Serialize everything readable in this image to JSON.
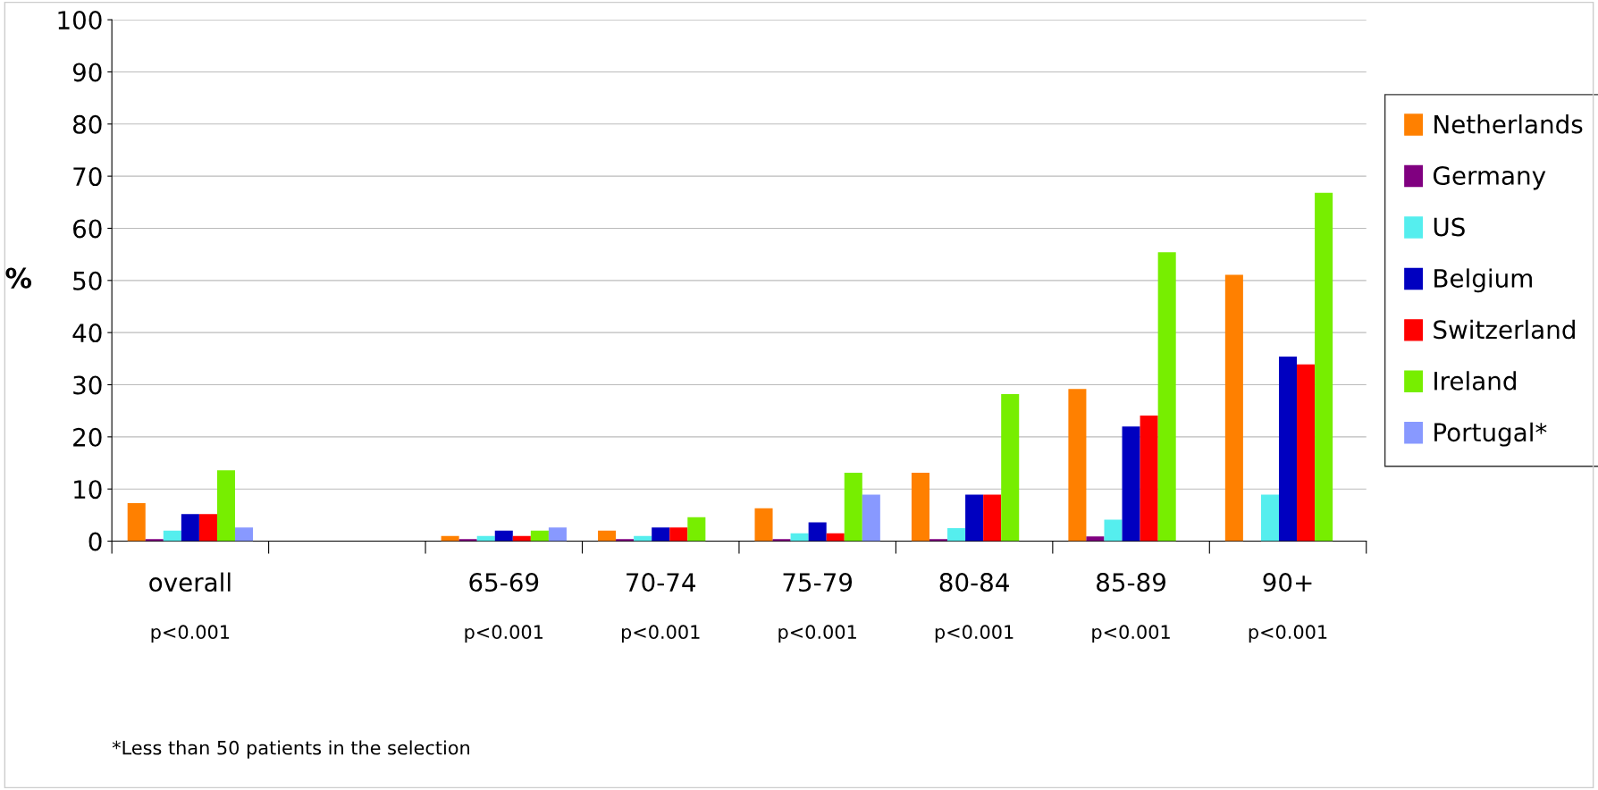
{
  "chart_data": {
    "type": "bar",
    "ylabel": "%",
    "categories": [
      "overall",
      null,
      "65-69",
      "70-74",
      "75-79",
      "80-84",
      "85-89",
      "90+"
    ],
    "series": [
      {
        "name": "Netherlands",
        "color": "#ff8000",
        "values": [
          7.3,
          null,
          1.0,
          2.0,
          6.3,
          13.1,
          29.2,
          51.1
        ]
      },
      {
        "name": "Germany",
        "color": "#800080",
        "values": [
          0.4,
          null,
          0.4,
          0.4,
          0.4,
          0.4,
          0.9,
          null
        ]
      },
      {
        "name": "US",
        "color": "#55eeee",
        "values": [
          2.0,
          null,
          1.0,
          1.0,
          1.5,
          2.5,
          4.1,
          8.9
        ]
      },
      {
        "name": "Belgium",
        "color": "#0000c0",
        "values": [
          5.2,
          null,
          2.0,
          2.6,
          3.6,
          8.9,
          22.0,
          35.4
        ]
      },
      {
        "name": "Switzerland",
        "color": "#ff0000",
        "values": [
          5.2,
          null,
          1.0,
          2.6,
          1.5,
          8.9,
          24.1,
          33.9
        ]
      },
      {
        "name": "Ireland",
        "color": "#77ee00",
        "values": [
          13.6,
          null,
          2.0,
          4.6,
          13.1,
          28.2,
          55.4,
          66.8
        ]
      },
      {
        "name": "Portugal*",
        "color": "#8899ff",
        "values": [
          2.6,
          null,
          2.6,
          null,
          8.9,
          null,
          null,
          null
        ]
      }
    ],
    "ylim": [
      0,
      100
    ],
    "yticks": [
      0,
      10,
      20,
      30,
      40,
      50,
      60,
      70,
      80,
      90,
      100
    ],
    "grid": "y",
    "legend": "right",
    "annotations": [
      "p<0.001",
      "p<0.001",
      "p<0.001",
      "p<0.001",
      "p<0.001",
      "p<0.001",
      "p<0.001",
      "*Less than 50 patients in the selection"
    ]
  }
}
